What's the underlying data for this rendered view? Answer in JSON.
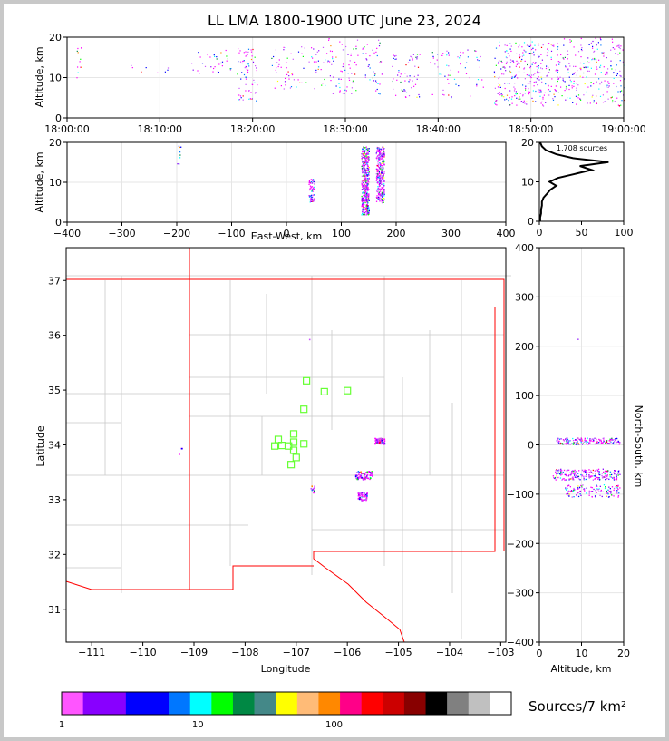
{
  "chart_data": [
    {
      "type": "scatter",
      "title": "LL LMA 1800-1900 UTC June 23, 2024",
      "xlabel": "",
      "ylabel": "Altitude, km",
      "xlim": [
        "18:00:00",
        "19:00:00"
      ],
      "ylim": [
        0,
        20
      ],
      "x_ticks": [
        "18:00:00",
        "18:10:00",
        "18:20:00",
        "18:30:00",
        "18:40:00",
        "18:50:00",
        "19:00:00"
      ],
      "y_ticks": [
        0,
        10,
        20
      ],
      "grid": true,
      "clusters": [
        {
          "t_min": 1.0,
          "t_max": 1.5,
          "alt_min": 10,
          "alt_max": 18,
          "count": 12
        },
        {
          "t_min": 6,
          "t_max": 14,
          "alt_min": 11,
          "alt_max": 14,
          "count": 10
        },
        {
          "t_min": 14,
          "t_max": 18,
          "alt_min": 11,
          "alt_max": 17,
          "count": 30
        },
        {
          "t_min": 18.3,
          "t_max": 20.5,
          "alt_min": 4,
          "alt_max": 18,
          "count": 70
        },
        {
          "t_min": 22,
          "t_max": 27,
          "alt_min": 7,
          "alt_max": 18,
          "count": 60
        },
        {
          "t_min": 27,
          "t_max": 34,
          "alt_min": 6,
          "alt_max": 20,
          "count": 120
        },
        {
          "t_min": 35,
          "t_max": 38,
          "alt_min": 5,
          "alt_max": 16,
          "count": 60
        },
        {
          "t_min": 39,
          "t_max": 45,
          "alt_min": 5,
          "alt_max": 17,
          "count": 60
        },
        {
          "t_min": 46,
          "t_max": 52,
          "alt_min": 3,
          "alt_max": 19,
          "count": 260
        },
        {
          "t_min": 52,
          "t_max": 60,
          "alt_min": 3,
          "alt_max": 20,
          "count": 260
        }
      ]
    },
    {
      "type": "scatter",
      "xlabel": "East-West, km",
      "ylabel": "Altitude, km",
      "xlim": [
        -400,
        400
      ],
      "ylim": [
        0,
        20
      ],
      "x_ticks": [
        -400,
        -300,
        -200,
        -100,
        0,
        100,
        200,
        300,
        400
      ],
      "y_ticks": [
        0,
        10,
        20
      ],
      "grid": true,
      "clusters": [
        {
          "x_min": -200,
          "x_max": -193,
          "alt_min": 12,
          "alt_max": 20,
          "count": 8
        },
        {
          "x_min": 40,
          "x_max": 50,
          "alt_min": 5,
          "alt_max": 11,
          "count": 60
        },
        {
          "x_min": 136,
          "x_max": 150,
          "alt_min": 2,
          "alt_max": 19,
          "count": 420
        },
        {
          "x_min": 163,
          "x_max": 178,
          "alt_min": 5,
          "alt_max": 19,
          "count": 320
        }
      ]
    },
    {
      "type": "line",
      "xlabel": "",
      "ylabel": "",
      "annotation": "1,708 sources",
      "xlim": [
        0,
        100
      ],
      "ylim": [
        0,
        20
      ],
      "x_ticks": [
        0,
        50,
        100
      ],
      "y_ticks": [
        0,
        10,
        20
      ],
      "profile": [
        {
          "alt": 0,
          "count": 1
        },
        {
          "alt": 1,
          "count": 1
        },
        {
          "alt": 2,
          "count": 2
        },
        {
          "alt": 3,
          "count": 2
        },
        {
          "alt": 4,
          "count": 3
        },
        {
          "alt": 5,
          "count": 3
        },
        {
          "alt": 6,
          "count": 5
        },
        {
          "alt": 7,
          "count": 9
        },
        {
          "alt": 8,
          "count": 13
        },
        {
          "alt": 9,
          "count": 20
        },
        {
          "alt": 10,
          "count": 12
        },
        {
          "alt": 11,
          "count": 22
        },
        {
          "alt": 12,
          "count": 42
        },
        {
          "alt": 13,
          "count": 62
        },
        {
          "alt": 14,
          "count": 48
        },
        {
          "alt": 15,
          "count": 82
        },
        {
          "alt": 16,
          "count": 40
        },
        {
          "alt": 17,
          "count": 20
        },
        {
          "alt": 18,
          "count": 8
        },
        {
          "alt": 19,
          "count": 3
        },
        {
          "alt": 20,
          "count": 1
        }
      ]
    },
    {
      "type": "scatter",
      "xlabel": "Longitude",
      "ylabel": "Latitude",
      "xlim": [
        -111.5,
        -102.9
      ],
      "ylim": [
        30.4,
        37.6
      ],
      "x_ticks": [
        -111,
        -110,
        -109,
        -108,
        -107,
        -106,
        -105,
        -104,
        -103
      ],
      "y_ticks": [
        31,
        32,
        33,
        34,
        35,
        36,
        37
      ],
      "stations": [
        {
          "lon": -106.8,
          "lat": 35.17
        },
        {
          "lon": -106.45,
          "lat": 34.97
        },
        {
          "lon": -106.0,
          "lat": 34.99
        },
        {
          "lon": -106.85,
          "lat": 34.65
        },
        {
          "lon": -107.05,
          "lat": 34.2
        },
        {
          "lon": -107.35,
          "lat": 34.1
        },
        {
          "lon": -107.42,
          "lat": 33.98
        },
        {
          "lon": -107.28,
          "lat": 33.99
        },
        {
          "lon": -107.15,
          "lat": 33.98
        },
        {
          "lon": -107.05,
          "lat": 34.05
        },
        {
          "lon": -107.05,
          "lat": 33.9
        },
        {
          "lon": -107.0,
          "lat": 33.77
        },
        {
          "lon": -107.1,
          "lat": 33.64
        },
        {
          "lon": -106.85,
          "lat": 34.02
        }
      ],
      "clusters": [
        {
          "lon_min": -109.3,
          "lon_max": -109.22,
          "lat_min": 33.82,
          "lat_max": 33.96,
          "count": 4
        },
        {
          "lon_min": -106.73,
          "lon_max": -106.65,
          "lat_min": 33.12,
          "lat_max": 33.26,
          "count": 10
        },
        {
          "lon_min": -106.76,
          "lon_max": -106.72,
          "lat_min": 35.92,
          "lat_max": 35.95,
          "count": 1
        },
        {
          "lon_min": -105.47,
          "lon_max": -105.28,
          "lat_min": 34.02,
          "lat_max": 34.13,
          "count": 70
        },
        {
          "lon_min": -105.85,
          "lon_max": -105.52,
          "lat_min": 33.37,
          "lat_max": 33.53,
          "count": 70
        },
        {
          "lon_min": -105.8,
          "lon_max": -105.62,
          "lat_min": 32.99,
          "lat_max": 33.14,
          "count": 50
        }
      ]
    },
    {
      "type": "scatter",
      "xlabel": "Altitude, km",
      "ylabel": "North-South, km",
      "xlim": [
        0,
        20
      ],
      "ylim": [
        -400,
        400
      ],
      "x_ticks": [
        0,
        10,
        20
      ],
      "y_ticks": [
        -400,
        -300,
        -200,
        -100,
        0,
        100,
        200,
        300,
        400
      ],
      "clusters": [
        {
          "alt_min": 8.9,
          "alt_max": 9.3,
          "ns_min": 213,
          "ns_max": 217,
          "count": 1
        },
        {
          "alt_min": 4,
          "alt_max": 19,
          "ns_min": 2,
          "ns_max": 15,
          "count": 180
        },
        {
          "alt_min": 3,
          "alt_max": 19,
          "ns_min": -70,
          "ns_max": -48,
          "count": 220
        },
        {
          "alt_min": 6,
          "alt_max": 19,
          "ns_min": -105,
          "ns_max": -80,
          "count": 120
        }
      ]
    }
  ],
  "colorbar": {
    "label": "Sources/7 km²",
    "tick_labels": [
      "1",
      "10",
      "100"
    ],
    "colors": [
      "#ff55ff",
      "#8800ff",
      "#8800ff",
      "#0000ff",
      "#0000ff",
      "#0077ff",
      "#00ffff",
      "#00ff00",
      "#008844",
      "#448888",
      "#ffff00",
      "#ffbb77",
      "#ff8800",
      "#ff0088",
      "#ff0000",
      "#cc0000",
      "#880000",
      "#000000",
      "#808080",
      "#c0c0c0",
      "#ffffff"
    ]
  }
}
